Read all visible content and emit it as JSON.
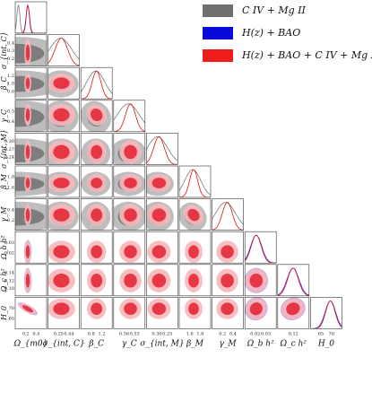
{
  "chart_data": {
    "type": "corner",
    "parameters": [
      {
        "name": "omega_m0",
        "label": "Ω_{m0}",
        "range": [
          0.1,
          0.6
        ],
        "ticks": [
          "0.2",
          "0.4"
        ]
      },
      {
        "name": "sigma_int_C",
        "label": "σ_{int, C}",
        "range": [
          0.15,
          0.55
        ],
        "ticks": [
          "0.25",
          "0.44"
        ]
      },
      {
        "name": "beta_C",
        "label": "β_C",
        "range": [
          0.6,
          1.4
        ],
        "ticks": [
          "0.8",
          "1.2"
        ]
      },
      {
        "name": "gamma_C",
        "label": "γ_C",
        "range": [
          0.3,
          0.58
        ],
        "ticks": [
          "0.36",
          "0.53"
        ]
      },
      {
        "name": "sigma_int_M",
        "label": "σ_{int, M}",
        "range": [
          0.2,
          0.4
        ],
        "ticks": [
          "0.30",
          "0.25"
        ]
      },
      {
        "name": "beta_M",
        "label": "β_M",
        "range": [
          1.4,
          2.1
        ],
        "ticks": [
          "1.6",
          "1.8"
        ]
      },
      {
        "name": "gamma_M",
        "label": "γ_M",
        "range": [
          0.15,
          0.5
        ],
        "ticks": [
          "0.2",
          "0.4"
        ]
      },
      {
        "name": "omega_b_h2",
        "label": "Ω_b h²",
        "range": [
          0.015,
          0.04
        ],
        "ticks": [
          "0.02",
          "0.03"
        ]
      },
      {
        "name": "omega_c_h2",
        "label": "Ω_c h²",
        "range": [
          0.08,
          0.16
        ],
        "ticks": [
          "0.12"
        ]
      },
      {
        "name": "H0",
        "label": "H_0",
        "range": [
          60,
          75
        ],
        "ticks": [
          "65",
          "70"
        ]
      }
    ],
    "y_ticks": {
      "sigma_int_C": [
        "0.4",
        "0.3",
        "0.2"
      ],
      "beta_C": [
        "1.2",
        "1.0",
        "0.8"
      ],
      "gamma_C": [
        "0.5",
        "0.4"
      ],
      "sigma_int_M": [
        "0.30",
        "0.27",
        "0.24"
      ],
      "beta_M": [
        "1.8",
        "1.6"
      ],
      "gamma_M": [
        "0.4",
        "0.2"
      ],
      "omega_b_h2": [
        "0.03",
        "0.02"
      ],
      "omega_c_h2": [
        "0.14",
        "0.12",
        "0.10"
      ],
      "H0": [
        "70",
        "65"
      ]
    },
    "series": [
      {
        "name": "C IV + Mg II",
        "color": "#6f6f6f",
        "parameters": [
          "omega_m0",
          "sigma_int_C",
          "beta_C",
          "gamma_C",
          "sigma_int_M",
          "beta_M",
          "gamma_M"
        ],
        "peaks": {
          "omega_m0": 0.15,
          "sigma_int_C": 0.31,
          "beta_C": 0.98,
          "gamma_C": 0.43,
          "sigma_int_M": 0.27,
          "beta_M": 1.7,
          "gamma_M": 0.3
        }
      },
      {
        "name": "H(z) + BAO",
        "color": "#0a0ad8",
        "parameters": [
          "omega_m0",
          "omega_b_h2",
          "omega_c_h2",
          "H0"
        ],
        "peaks": {
          "omega_m0": 0.3,
          "omega_b_h2": 0.024,
          "omega_c_h2": 0.119,
          "H0": 69.5
        }
      },
      {
        "name": "H(z) + BAO + C IV + Mg II",
        "color": "#ee1c1c",
        "parameters": [
          "omega_m0",
          "sigma_int_C",
          "beta_C",
          "gamma_C",
          "sigma_int_M",
          "beta_M",
          "gamma_M",
          "omega_b_h2",
          "omega_c_h2",
          "H0"
        ],
        "peaks": {
          "omega_m0": 0.3,
          "sigma_int_C": 0.32,
          "beta_C": 1.0,
          "gamma_C": 0.45,
          "sigma_int_M": 0.28,
          "beta_M": 1.72,
          "gamma_M": 0.32,
          "omega_b_h2": 0.024,
          "omega_c_h2": 0.119,
          "H0": 69.5
        }
      }
    ],
    "legend_position": "top-right",
    "grid": false
  },
  "legend": [
    {
      "color": "#6f6f6f",
      "text": "C IV + Mg II"
    },
    {
      "color": "#0a0ad8",
      "text": "H(z) + BAO"
    },
    {
      "color": "#ee1c1c",
      "text": "H(z) + BAO + C IV + Mg II"
    }
  ]
}
